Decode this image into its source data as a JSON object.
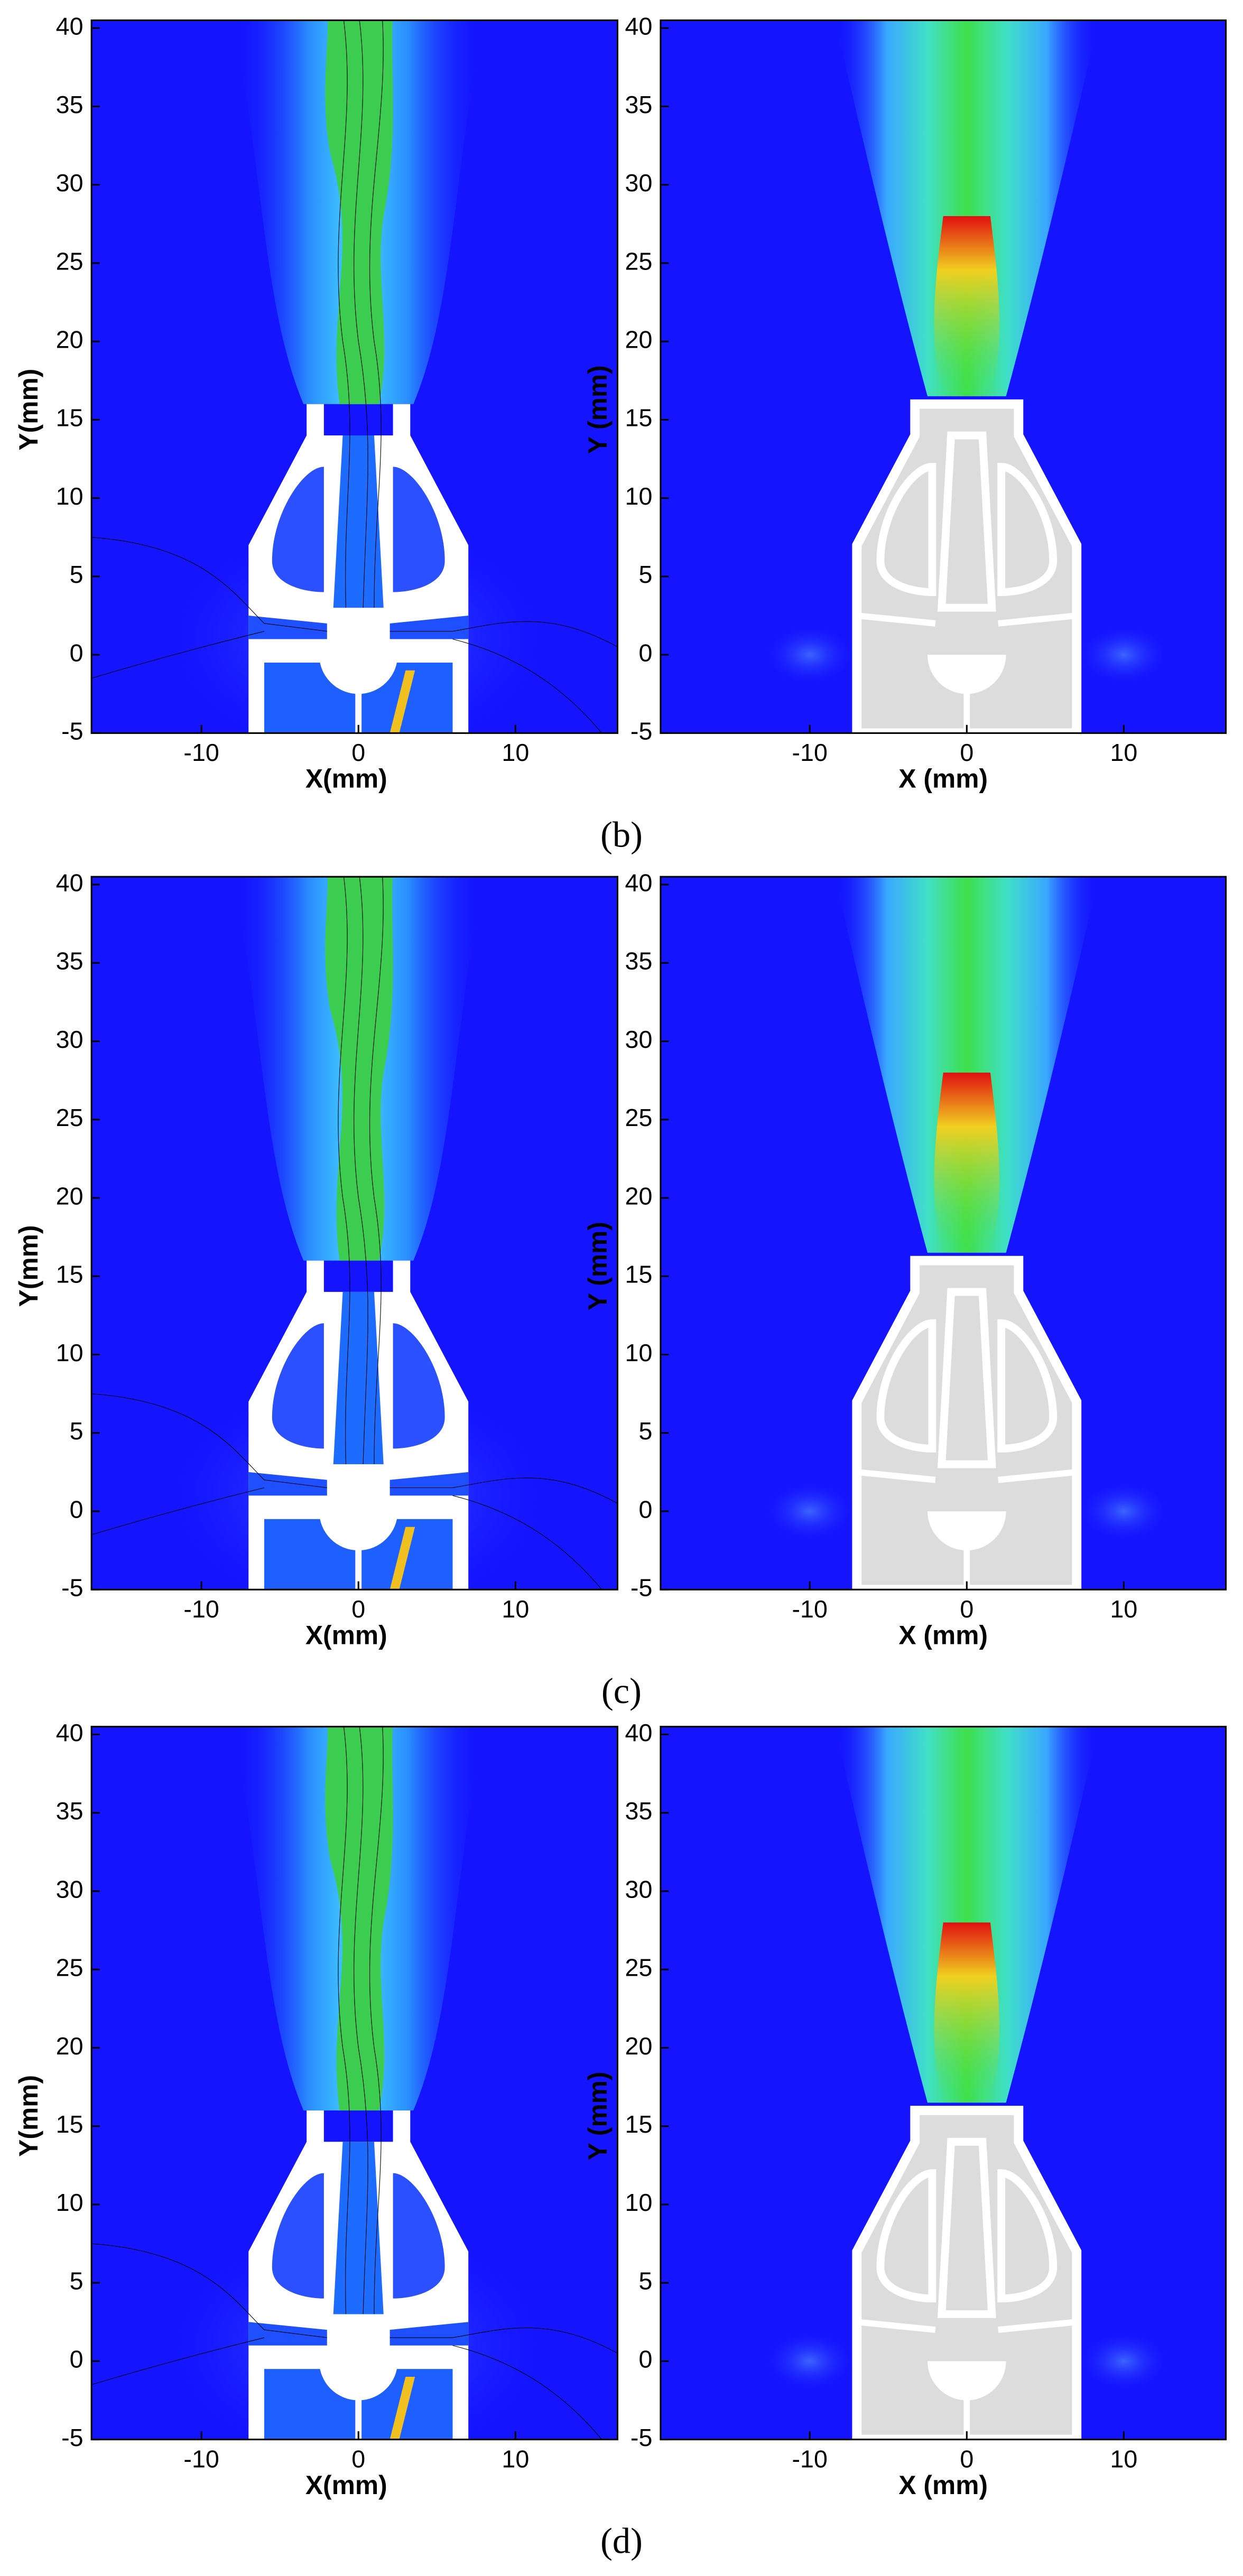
{
  "chart_data": [
    {
      "type": "contour",
      "xlabel": "X(mm)",
      "ylabel": "Y(mm)",
      "xlim": [
        -17,
        16.5
      ],
      "ylim": [
        -5,
        40.5
      ],
      "xticks": [
        -10,
        0,
        10
      ],
      "yticks": [
        -5,
        0,
        5,
        10,
        15,
        20,
        25,
        30,
        35,
        40
      ]
    },
    {
      "type": "contour",
      "xlabel": "X (mm)",
      "ylabel": "Y (mm)",
      "xlim": [
        -19.5,
        16.5
      ],
      "ylim": [
        -5,
        40.5
      ],
      "xticks": [
        -10,
        0,
        10
      ],
      "yticks": [
        -5,
        0,
        5,
        10,
        15,
        20,
        25,
        30,
        35,
        40
      ]
    },
    {
      "type": "contour",
      "xlabel": "X(mm)",
      "ylabel": "Y(mm)",
      "xlim": [
        -17,
        16.5
      ],
      "ylim": [
        -5,
        40.5
      ],
      "xticks": [
        -10,
        0,
        10
      ],
      "yticks": [
        -5,
        0,
        5,
        10,
        15,
        20,
        25,
        30,
        35,
        40
      ]
    },
    {
      "type": "contour",
      "xlabel": "X (mm)",
      "ylabel": "Y (mm)",
      "xlim": [
        -19.5,
        16.5
      ],
      "ylim": [
        -5,
        40.5
      ],
      "xticks": [
        -10,
        0,
        10
      ],
      "yticks": [
        -5,
        0,
        5,
        10,
        15,
        20,
        25,
        30,
        35,
        40
      ]
    },
    {
      "type": "contour",
      "xlabel": "X(mm)",
      "ylabel": "Y(mm)",
      "xlim": [
        -17,
        16.5
      ],
      "ylim": [
        -5,
        40.5
      ],
      "xticks": [
        -10,
        0,
        10
      ],
      "yticks": [
        -5,
        0,
        5,
        10,
        15,
        20,
        25,
        30,
        35,
        40
      ]
    },
    {
      "type": "contour",
      "xlabel": "X (mm)",
      "ylabel": "Y (mm)",
      "xlim": [
        -19.5,
        16.5
      ],
      "ylim": [
        -5,
        40.5
      ],
      "xticks": [
        -10,
        0,
        10
      ],
      "yticks": [
        -5,
        0,
        5,
        10,
        15,
        20,
        25,
        30,
        35,
        40
      ]
    }
  ],
  "panel_labels": [
    "(b)",
    "(c)",
    "(d)"
  ]
}
